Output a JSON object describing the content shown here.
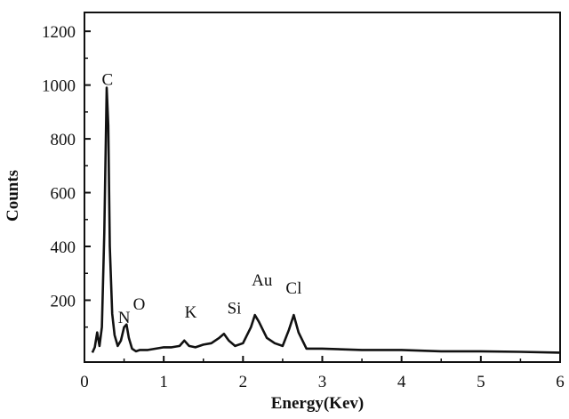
{
  "chart_data": {
    "type": "line",
    "title": "",
    "xlabel": "Energy(Kev)",
    "ylabel": "Counts",
    "xlim": [
      0,
      6
    ],
    "ylim": [
      -30,
      1270
    ],
    "xticks": [
      "0",
      "1",
      "2",
      "3",
      "4",
      "5",
      "6"
    ],
    "yticks": [
      "200",
      "400",
      "600",
      "800",
      "1000",
      "1200"
    ],
    "grid": false,
    "legend": "none",
    "line_color": "#111111",
    "series": [
      {
        "x": [
          0.1,
          0.13,
          0.16,
          0.19,
          0.22,
          0.25,
          0.28,
          0.3,
          0.32,
          0.35,
          0.38,
          0.42,
          0.46,
          0.5,
          0.53,
          0.56,
          0.6,
          0.65,
          0.7,
          0.8,
          0.9,
          1.0,
          1.1,
          1.2,
          1.26,
          1.32,
          1.4,
          1.5,
          1.6,
          1.7,
          1.76,
          1.82,
          1.9,
          2.0,
          2.1,
          2.15,
          2.2,
          2.3,
          2.4,
          2.5,
          2.58,
          2.64,
          2.7,
          2.8,
          3.0,
          3.5,
          4.0,
          4.5,
          5.0,
          5.5,
          6.0
        ],
        "y": [
          5,
          25,
          80,
          30,
          100,
          450,
          990,
          850,
          400,
          150,
          70,
          30,
          50,
          100,
          110,
          60,
          20,
          10,
          15,
          15,
          20,
          25,
          25,
          30,
          50,
          30,
          25,
          35,
          40,
          60,
          75,
          50,
          30,
          40,
          100,
          145,
          120,
          60,
          40,
          30,
          90,
          145,
          80,
          20,
          20,
          15,
          15,
          10,
          10,
          8,
          5
        ]
      }
    ],
    "annotations": [
      {
        "text": "C",
        "x": 0.29,
        "y": 1000
      },
      {
        "text": "N",
        "x": 0.5,
        "y": 115
      },
      {
        "text": "O",
        "x": 0.69,
        "y": 165
      },
      {
        "text": "K",
        "x": 1.34,
        "y": 135
      },
      {
        "text": "Si",
        "x": 1.89,
        "y": 150
      },
      {
        "text": "Au",
        "x": 2.24,
        "y": 255
      },
      {
        "text": "Cl",
        "x": 2.64,
        "y": 225
      }
    ]
  }
}
